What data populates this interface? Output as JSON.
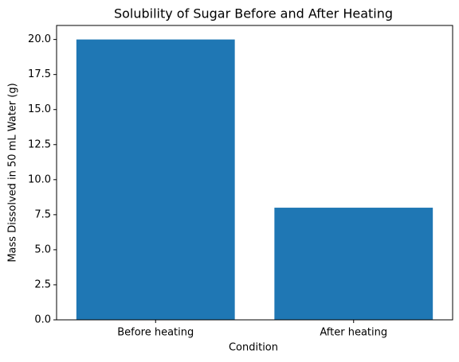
{
  "chart_data": {
    "type": "bar",
    "title": "Solubility of Sugar Before and After Heating",
    "x_label": "Condition",
    "y_label": "Mass Dissolved in 50 mL Water (g)",
    "categories": [
      "Before heating",
      "After heating"
    ],
    "values": [
      20,
      8
    ],
    "color": "#1f77b4",
    "ylim": [
      0,
      21
    ],
    "yticks": [
      {
        "value": 0,
        "label": "0.0"
      },
      2.5,
      {
        "value": 5,
        "label": "5.0"
      },
      7.5,
      {
        "value": 10,
        "label": "10.0"
      },
      12.5,
      {
        "value": 15,
        "label": "15.0"
      },
      17.5,
      {
        "value": 20,
        "label": "20.0"
      }
    ],
    "grid": false
  }
}
